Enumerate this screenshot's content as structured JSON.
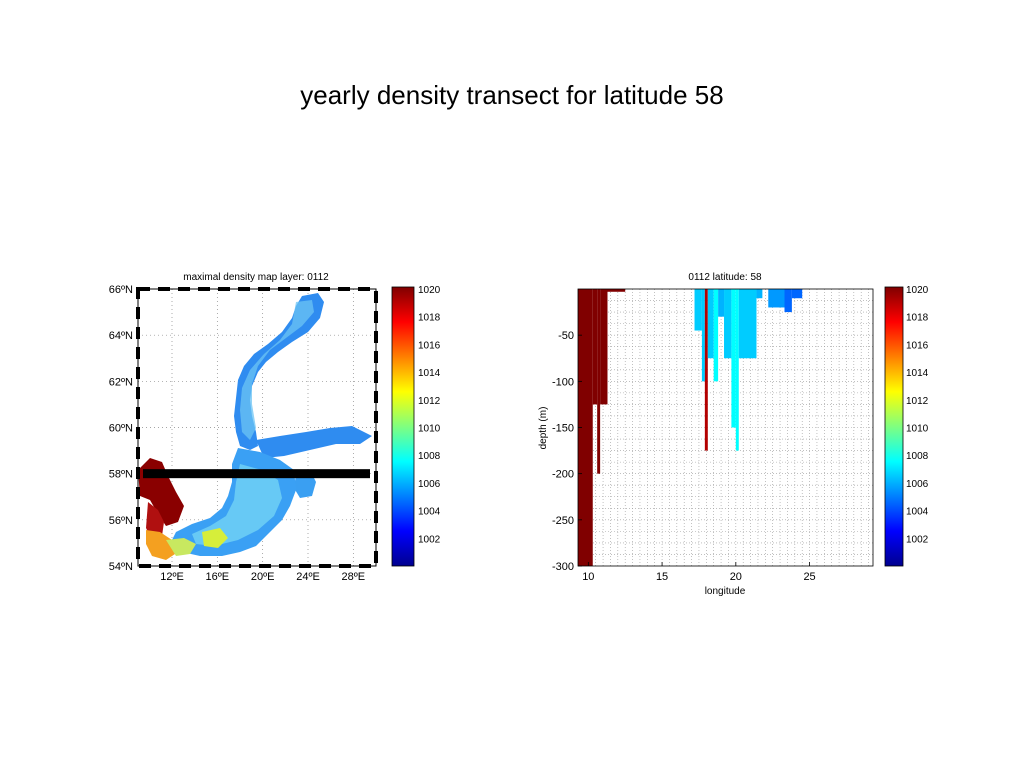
{
  "slide": {
    "title": "yearly density transect for latitude 58"
  },
  "chart_data": [
    {
      "type": "heatmap",
      "title": "maximal density map layer: 0112",
      "xlabel": "",
      "ylabel": "",
      "x_tick_labels": [
        "12ºE",
        "16ºE",
        "20ºE",
        "24ºE",
        "28ºE"
      ],
      "x_ticks": [
        12,
        16,
        20,
        24,
        28
      ],
      "y_tick_labels": [
        "54ºN",
        "56ºN",
        "58ºN",
        "60ºN",
        "62ºN",
        "64ºN",
        "66ºN"
      ],
      "y_ticks": [
        54,
        56,
        58,
        60,
        62,
        64,
        66
      ],
      "xlim": [
        9,
        30
      ],
      "ylim": [
        54,
        66
      ],
      "grid": true,
      "transect_latitude": 58,
      "colorbar": {
        "range": [
          1000,
          1020
        ],
        "ticks": [
          1002,
          1004,
          1006,
          1008,
          1010,
          1012,
          1014,
          1016,
          1018,
          1020
        ]
      }
    },
    {
      "type": "heatmap",
      "title": "0112 latitude: 58",
      "xlabel": "longitude",
      "ylabel": "depth (m)",
      "xlim": [
        9.3,
        29.3
      ],
      "ylim": [
        -300,
        0
      ],
      "x_ticks": [
        10,
        15,
        20,
        25
      ],
      "y_ticks": [
        -50,
        -100,
        -150,
        -200,
        -250,
        -300
      ],
      "grid": true,
      "columns": [
        {
          "x": [
            9.3,
            10.3
          ],
          "max_depth": -300,
          "density": 1020
        },
        {
          "x": [
            10.3,
            10.6
          ],
          "max_depth": -125,
          "density": 1020
        },
        {
          "x": [
            10.6,
            10.8
          ],
          "max_depth": -200,
          "density": 1020
        },
        {
          "x": [
            10.8,
            11.3
          ],
          "max_depth": -125,
          "density": 1020
        },
        {
          "x": [
            11.3,
            12.5
          ],
          "max_depth": -3,
          "density": 1020
        },
        {
          "x": [
            17.2,
            17.7
          ],
          "max_depth": -45,
          "density": 1006.5
        },
        {
          "x": [
            17.7,
            17.9
          ],
          "max_depth": -100,
          "density": 1006.5
        },
        {
          "x": [
            17.9,
            18.1
          ],
          "max_depth": -175,
          "density": 1019
        },
        {
          "x": [
            18.1,
            18.5
          ],
          "max_depth": -75,
          "density": 1006.5
        },
        {
          "x": [
            18.5,
            18.8
          ],
          "max_depth": -100,
          "density": 1007.5
        },
        {
          "x": [
            18.8,
            19.2
          ],
          "max_depth": -30,
          "density": 1006
        },
        {
          "x": [
            19.2,
            19.7
          ],
          "max_depth": -75,
          "density": 1006.5
        },
        {
          "x": [
            19.7,
            20.0
          ],
          "max_depth": -150,
          "density": 1007.5
        },
        {
          "x": [
            20.0,
            20.2
          ],
          "max_depth": -175,
          "density": 1007.5
        },
        {
          "x": [
            20.2,
            21.4
          ],
          "max_depth": -75,
          "density": 1006.5
        },
        {
          "x": [
            21.4,
            21.8
          ],
          "max_depth": -10,
          "density": 1006
        },
        {
          "x": [
            22.2,
            23.3
          ],
          "max_depth": -20,
          "density": 1005.5
        },
        {
          "x": [
            23.3,
            23.8
          ],
          "max_depth": -25,
          "density": 1004.5
        },
        {
          "x": [
            23.8,
            24.5
          ],
          "max_depth": -10,
          "density": 1004.5
        }
      ],
      "colorbar": {
        "range": [
          1000,
          1020
        ],
        "ticks": [
          1002,
          1004,
          1006,
          1008,
          1010,
          1012,
          1014,
          1016,
          1018,
          1020
        ]
      }
    }
  ]
}
